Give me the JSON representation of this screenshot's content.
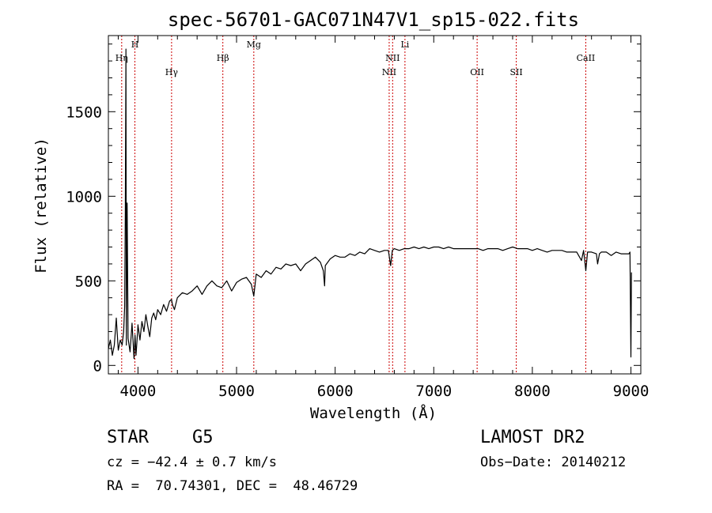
{
  "chart_data": {
    "type": "line",
    "title": "spec-56701-GAC071N47V1_sp15-022.fits",
    "xlabel": "Wavelength (Å)",
    "ylabel": "Flux (relative)",
    "xlim": [
      3700,
      9100
    ],
    "ylim": [
      -50,
      1950
    ],
    "xticks": [
      4000,
      5000,
      6000,
      7000,
      8000,
      9000
    ],
    "yticks": [
      0,
      500,
      1000,
      1500
    ],
    "grid": false,
    "line_color": "#000000",
    "marker_color": "#cc0000",
    "spectral_lines": [
      {
        "label": "Hη",
        "wavelength": 3835,
        "row": 0
      },
      {
        "label": "H",
        "wavelength": 3969,
        "row": 1
      },
      {
        "label": "Hγ",
        "wavelength": 4341,
        "row": 2
      },
      {
        "label": "Hβ",
        "wavelength": 4861,
        "row": 0
      },
      {
        "label": "Mg",
        "wavelength": 5175,
        "row": 1
      },
      {
        "label": "NII",
        "wavelength": 6548,
        "row": 2
      },
      {
        "label": "NII",
        "wavelength": 6583,
        "row": 0
      },
      {
        "label": "Li",
        "wavelength": 6708,
        "row": 1
      },
      {
        "label": "OII",
        "wavelength": 7440,
        "row": 2
      },
      {
        "label": "SII",
        "wavelength": 7837,
        "row": 2
      },
      {
        "label": "CaII",
        "wavelength": 8542,
        "row": 0
      }
    ],
    "series": [
      {
        "x": [
          3700,
          3720,
          3740,
          3760,
          3780,
          3800,
          3820,
          3840,
          3855,
          3865,
          3872,
          3878,
          3882,
          3886,
          3890,
          3900,
          3920,
          3940,
          3960,
          3970,
          3980,
          3990,
          4000,
          4020,
          4040,
          4060,
          4080,
          4100,
          4120,
          4140,
          4160,
          4180,
          4200,
          4230,
          4260,
          4290,
          4320,
          4340,
          4350,
          4370,
          4400,
          4450,
          4500,
          4550,
          4600,
          4650,
          4700,
          4750,
          4800,
          4850,
          4900,
          4950,
          5000,
          5050,
          5100,
          5150,
          5175,
          5200,
          5250,
          5300,
          5350,
          5400,
          5450,
          5500,
          5550,
          5600,
          5650,
          5700,
          5750,
          5800,
          5850,
          5880,
          5893,
          5900,
          5950,
          6000,
          6050,
          6100,
          6150,
          6200,
          6250,
          6300,
          6350,
          6400,
          6450,
          6500,
          6540,
          6563,
          6580,
          6600,
          6650,
          6700,
          6750,
          6800,
          6850,
          6900,
          6950,
          7000,
          7050,
          7100,
          7150,
          7200,
          7250,
          7300,
          7350,
          7400,
          7450,
          7500,
          7550,
          7600,
          7650,
          7700,
          7750,
          7800,
          7850,
          7900,
          7950,
          8000,
          8050,
          8100,
          8150,
          8200,
          8250,
          8300,
          8350,
          8400,
          8450,
          8498,
          8520,
          8542,
          8560,
          8600,
          8650,
          8662,
          8680,
          8700,
          8750,
          8800,
          8850,
          8900,
          8950,
          8980,
          8990,
          9000,
          9005
        ],
        "y": [
          100,
          150,
          60,
          120,
          280,
          90,
          150,
          120,
          200,
          350,
          900,
          1870,
          120,
          600,
          960,
          160,
          80,
          250,
          40,
          180,
          60,
          140,
          240,
          150,
          260,
          200,
          300,
          230,
          170,
          280,
          310,
          270,
          330,
          300,
          360,
          320,
          380,
          390,
          360,
          330,
          400,
          430,
          420,
          440,
          470,
          420,
          470,
          500,
          470,
          460,
          500,
          440,
          490,
          510,
          520,
          480,
          410,
          540,
          520,
          560,
          540,
          580,
          570,
          600,
          590,
          600,
          560,
          600,
          620,
          640,
          610,
          560,
          470,
          590,
          630,
          650,
          640,
          640,
          660,
          650,
          670,
          660,
          690,
          680,
          670,
          680,
          680,
          590,
          680,
          690,
          680,
          690,
          690,
          700,
          690,
          700,
          690,
          700,
          700,
          690,
          700,
          690,
          690,
          690,
          690,
          690,
          690,
          680,
          690,
          690,
          690,
          680,
          690,
          700,
          690,
          690,
          690,
          680,
          690,
          680,
          670,
          680,
          680,
          680,
          670,
          670,
          670,
          620,
          680,
          560,
          670,
          670,
          660,
          600,
          660,
          670,
          670,
          650,
          670,
          660,
          660,
          660,
          670,
          50,
          550
        ]
      }
    ]
  },
  "footer": {
    "object_type": "STAR",
    "subclass": "G5",
    "survey": "LAMOST DR2",
    "redshift_line": "cz = −42.4 ± 0.7 km/s",
    "obs_date": "Obs−Date: 20140212",
    "coords_line": "RA =  70.74301, DEC =  48.46729"
  }
}
